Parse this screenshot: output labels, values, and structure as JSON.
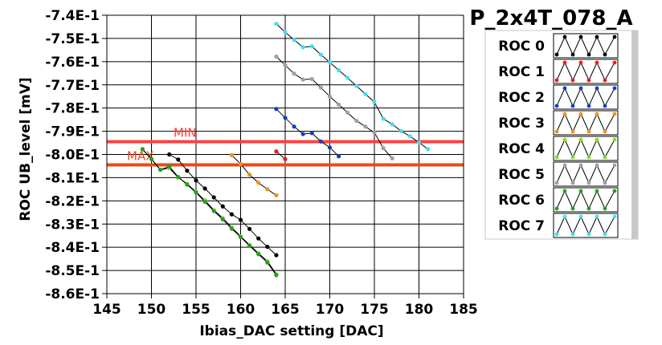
{
  "chart_data": {
    "type": "line",
    "title": "P_2x4T_078_A",
    "xlabel": "Ibias_DAC setting [DAC]",
    "ylabel": "ROC UB_level [mV]",
    "xlim": [
      145,
      185
    ],
    "ylim": [
      -0.86,
      -0.74
    ],
    "x_ticks": [
      145,
      150,
      155,
      160,
      165,
      170,
      175,
      180,
      185
    ],
    "x_tick_labels": [
      "145",
      "150",
      "155",
      "160",
      "165",
      "170",
      "175",
      "180",
      "185"
    ],
    "y_ticks": [
      -0.74,
      -0.75,
      -0.76,
      -0.77,
      -0.78,
      -0.79,
      -0.8,
      -0.81,
      -0.82,
      -0.83,
      -0.84,
      -0.85,
      -0.86
    ],
    "y_tick_labels": [
      "-7.4E-1",
      "-7.5E-1",
      "-7.6E-1",
      "-7.7E-1",
      "-7.8E-1",
      "-7.9E-1",
      "-8.0E-1",
      "-8.1E-1",
      "-8.2E-1",
      "-8.3E-1",
      "-8.4E-1",
      "-8.5E-1",
      "-8.6E-1"
    ],
    "grid": true,
    "legend_position": "right",
    "reference_lines": [
      {
        "label": "MIN",
        "y": -0.7945,
        "color": "#ff4040"
      },
      {
        "label": "MAX",
        "y": -0.8045,
        "color": "#e84a1a"
      }
    ],
    "series": [
      {
        "name": "ROC 0",
        "color": "#000000",
        "x": [
          152,
          153,
          154,
          155,
          156,
          157,
          158,
          159,
          160,
          161,
          162,
          163,
          164
        ],
        "y": [
          -0.8,
          -0.8022,
          -0.807,
          -0.8112,
          -0.8147,
          -0.8185,
          -0.8224,
          -0.8258,
          -0.8282,
          -0.8321,
          -0.8362,
          -0.8398,
          -0.8434
        ]
      },
      {
        "name": "ROC 1",
        "color": "#e02020",
        "x": [
          164,
          165
        ],
        "y": [
          -0.7987,
          -0.802
        ]
      },
      {
        "name": "ROC 2",
        "color": "#1040c0",
        "x": [
          164,
          165,
          166,
          167,
          168,
          169,
          170,
          171
        ],
        "y": [
          -0.7804,
          -0.7842,
          -0.788,
          -0.7912,
          -0.7908,
          -0.7944,
          -0.797,
          -0.8008
        ]
      },
      {
        "name": "ROC 3",
        "color": "#f09020",
        "x": [
          159,
          160,
          161,
          162,
          163,
          164
        ],
        "y": [
          -0.8003,
          -0.8041,
          -0.8087,
          -0.8122,
          -0.815,
          -0.8176
        ]
      },
      {
        "name": "ROC 4",
        "color": "#80e020",
        "x": [
          149,
          150,
          151,
          152,
          153,
          154,
          155,
          156,
          157,
          158,
          159,
          160,
          161,
          162,
          163,
          164
        ],
        "y": [
          -0.7979,
          -0.8019,
          -0.8066,
          -0.8059,
          -0.8099,
          -0.8127,
          -0.8162,
          -0.8198,
          -0.824,
          -0.8274,
          -0.8314,
          -0.8353,
          -0.839,
          -0.8426,
          -0.846,
          -0.8516
        ]
      },
      {
        "name": "ROC 5",
        "color": "#a0a0a0",
        "x": [
          164,
          165,
          166,
          167,
          168,
          169,
          170,
          171,
          172,
          173,
          174,
          175,
          176,
          177
        ],
        "y": [
          -0.7578,
          -0.7615,
          -0.7652,
          -0.7677,
          -0.7675,
          -0.7712,
          -0.775,
          -0.7785,
          -0.782,
          -0.7855,
          -0.788,
          -0.7906,
          -0.7973,
          -0.8017
        ]
      },
      {
        "name": "ROC 6",
        "color": "#20a020",
        "x": [
          149,
          150,
          151,
          152,
          153,
          154,
          155,
          156,
          157,
          158,
          159,
          160,
          161,
          162,
          163,
          164
        ],
        "y": [
          -0.7977,
          -0.802,
          -0.8066,
          -0.8052,
          -0.8097,
          -0.813,
          -0.8164,
          -0.8204,
          -0.8244,
          -0.828,
          -0.832,
          -0.8356,
          -0.8394,
          -0.843,
          -0.8466,
          -0.852
        ]
      },
      {
        "name": "ROC 7",
        "color": "#40e0f0",
        "x": [
          164,
          165,
          166,
          167,
          168,
          169,
          170,
          171,
          172,
          173,
          174,
          175,
          176,
          177,
          178,
          179,
          180,
          181
        ],
        "y": [
          -0.7437,
          -0.7473,
          -0.7506,
          -0.7538,
          -0.7534,
          -0.757,
          -0.7603,
          -0.7637,
          -0.767,
          -0.7705,
          -0.774,
          -0.7774,
          -0.7846,
          -0.787,
          -0.7899,
          -0.7922,
          -0.7948,
          -0.7977
        ]
      }
    ]
  }
}
